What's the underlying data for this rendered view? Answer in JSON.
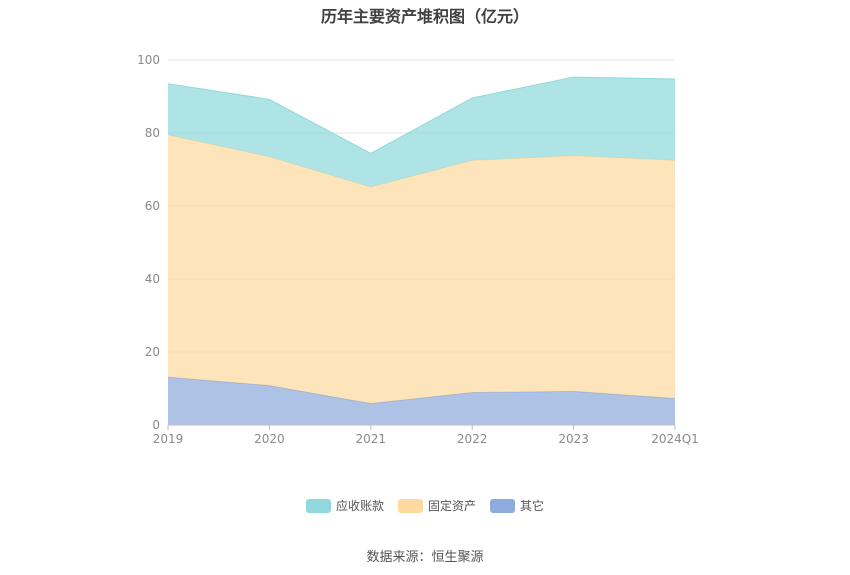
{
  "chart_data": {
    "type": "area",
    "stacked": true,
    "title": "历年主要资产堆积图（亿元）",
    "categories": [
      "2019",
      "2020",
      "2021",
      "2022",
      "2023",
      "2024Q1"
    ],
    "ylim": [
      0,
      100
    ],
    "yticks": [
      0,
      20,
      40,
      60,
      80,
      100
    ],
    "grid": true,
    "legend_position": "bottom",
    "series": [
      {
        "name": "其它",
        "color": "#8faadc",
        "values": [
          13.1,
          10.8,
          5.9,
          8.9,
          9.2,
          7.3
        ]
      },
      {
        "name": "固定资产",
        "color": "#fdd9a0",
        "values": [
          66.4,
          62.7,
          59.3,
          63.6,
          64.6,
          65.2
        ]
      },
      {
        "name": "应收账款",
        "color": "#8fd9dc",
        "values": [
          14.0,
          15.7,
          9.2,
          17.1,
          21.5,
          22.3
        ]
      }
    ],
    "source": "数据来源：恒生聚源"
  }
}
